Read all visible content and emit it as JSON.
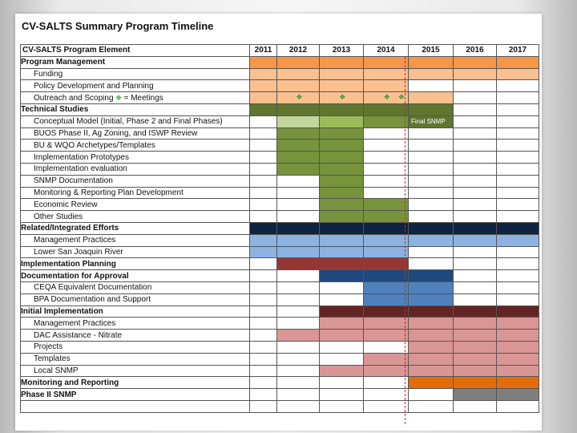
{
  "title": "CV-SALTS Summary Program Timeline",
  "header": {
    "element_label": "CV-SALTS Program Element",
    "years": [
      "2011",
      "2012",
      "2013",
      "2014",
      "2015",
      "2016",
      "2017"
    ]
  },
  "colors": {
    "orange": "#f79646",
    "peach": "#fac08f",
    "olive_dark": "#5f7530",
    "olive_mid": "#77933c",
    "light_green": "#c3d69b",
    "green": "#9bbb59",
    "navy": "#0f243e",
    "light_blue": "#8db3e2",
    "dark_red": "#953735",
    "dark_blue": "#1f497d",
    "mid_blue": "#4f81bd",
    "maroon": "#632523",
    "pink": "#d99694",
    "bright_orange": "#e46c0a",
    "gray": "#7f7f7f",
    "white": "#ffffff"
  },
  "legend_text": "= Meetings",
  "rows": [
    {
      "label": "Program Management",
      "type": "cat",
      "cells": [
        "orange",
        "orange",
        "orange",
        "orange",
        "orange",
        "orange",
        "orange"
      ]
    },
    {
      "label": "Funding",
      "type": "sub",
      "cells": [
        "peach",
        "peach",
        "peach",
        "peach",
        "peach",
        "peach",
        "peach"
      ]
    },
    {
      "label": "Policy Development and Planning",
      "type": "sub",
      "cells": [
        "peach",
        "peach",
        "peach",
        "peach",
        "white",
        "white",
        "white"
      ]
    },
    {
      "label": "Outreach and Scoping",
      "type": "sub",
      "meeting_note": true,
      "cells": [
        "peach",
        "peach",
        "peach",
        "peach",
        "peach",
        "white",
        "white"
      ],
      "marks": [
        1,
        2,
        3,
        3.5
      ]
    },
    {
      "label": "Technical Studies",
      "type": "cat",
      "cells": [
        "olive_dark",
        "olive_dark",
        "olive_dark",
        "olive_dark",
        "olive_dark",
        "white",
        "white"
      ]
    },
    {
      "label": "Conceptual Model (Initial, Phase 2 and Final Phases)",
      "type": "sub",
      "cells": [
        "white",
        "light_green",
        "green",
        "olive_mid",
        "olive_dark",
        "white",
        "white"
      ],
      "note_col": 3,
      "note": "Final SNMP"
    },
    {
      "label": "BUOS Phase II, Ag Zoning, and ISWP Review",
      "type": "sub",
      "cells": [
        "white",
        "olive_mid",
        "olive_mid",
        "white",
        "white",
        "white",
        "white"
      ]
    },
    {
      "label": "BU & WQO Archetypes/Templates",
      "type": "sub",
      "cells": [
        "white",
        "olive_mid",
        "olive_mid",
        "white",
        "white",
        "white",
        "white"
      ]
    },
    {
      "label": "Implementation Prototypes",
      "type": "sub",
      "cells": [
        "white",
        "olive_mid",
        "olive_mid",
        "white",
        "white",
        "white",
        "white"
      ]
    },
    {
      "label": "Implementation evaluation",
      "type": "sub",
      "cells": [
        "white",
        "olive_mid",
        "olive_mid",
        "white",
        "white",
        "white",
        "white"
      ]
    },
    {
      "label": "SNMP Documentation",
      "type": "sub",
      "cells": [
        "white",
        "white",
        "olive_mid",
        "white",
        "white",
        "white",
        "white"
      ]
    },
    {
      "label": "Monitoring & Reporting Plan Development",
      "type": "sub",
      "cells": [
        "white",
        "white",
        "olive_mid",
        "white",
        "white",
        "white",
        "white"
      ]
    },
    {
      "label": "Economic Review",
      "type": "sub",
      "cells": [
        "white",
        "white",
        "olive_mid",
        "olive_mid",
        "white",
        "white",
        "white"
      ]
    },
    {
      "label": "Other Studies",
      "type": "sub",
      "cells": [
        "white",
        "white",
        "olive_mid",
        "olive_mid",
        "white",
        "white",
        "white"
      ]
    },
    {
      "label": "Related/Integrated Efforts",
      "type": "cat",
      "cells": [
        "navy",
        "navy",
        "navy",
        "navy",
        "navy",
        "navy",
        "navy"
      ]
    },
    {
      "label": "Management Practices",
      "type": "sub",
      "cells": [
        "light_blue",
        "light_blue",
        "light_blue",
        "light_blue",
        "light_blue",
        "light_blue",
        "light_blue"
      ]
    },
    {
      "label": "Lower San Joaquin River",
      "type": "sub",
      "cells": [
        "light_blue",
        "light_blue",
        "light_blue",
        "light_blue",
        "white",
        "white",
        "white"
      ]
    },
    {
      "label": "Implementation Planning",
      "type": "cat",
      "cells": [
        "white",
        "dark_red",
        "dark_red",
        "dark_red",
        "white",
        "white",
        "white"
      ]
    },
    {
      "label": "Documentation for Approval",
      "type": "cat",
      "cells": [
        "white",
        "white",
        "dark_blue",
        "dark_blue",
        "dark_blue",
        "white",
        "white"
      ]
    },
    {
      "label": "CEQA Equivalent Documentation",
      "type": "sub",
      "cells": [
        "white",
        "white",
        "white",
        "mid_blue",
        "mid_blue",
        "white",
        "white"
      ]
    },
    {
      "label": "BPA Documentation and Support",
      "type": "sub",
      "cells": [
        "white",
        "white",
        "white",
        "mid_blue",
        "mid_blue",
        "white",
        "white"
      ]
    },
    {
      "label": "Initial Implementation",
      "type": "cat",
      "cells": [
        "white",
        "white",
        "maroon",
        "maroon",
        "maroon",
        "maroon",
        "maroon"
      ]
    },
    {
      "label": "Management Practices",
      "type": "sub",
      "cells": [
        "white",
        "white",
        "pink",
        "pink",
        "pink",
        "pink",
        "pink"
      ]
    },
    {
      "label": "DAC Assistance - Nitrate",
      "type": "sub",
      "cells": [
        "white",
        "pink",
        "pink",
        "pink",
        "pink",
        "pink",
        "pink"
      ]
    },
    {
      "label": "Projects",
      "type": "sub",
      "cells": [
        "white",
        "white",
        "white",
        "white",
        "pink",
        "pink",
        "pink"
      ]
    },
    {
      "label": "Templates",
      "type": "sub",
      "cells": [
        "white",
        "white",
        "white",
        "pink",
        "pink",
        "pink",
        "pink"
      ]
    },
    {
      "label": "Local SNMP",
      "type": "sub",
      "cells": [
        "white",
        "white",
        "pink",
        "pink",
        "pink",
        "pink",
        "pink"
      ]
    },
    {
      "label": "Monitoring and Reporting",
      "type": "cat",
      "cells": [
        "white",
        "white",
        "white",
        "white",
        "bright_orange",
        "bright_orange",
        "bright_orange"
      ]
    },
    {
      "label": "Phase II SNMP",
      "type": "cat",
      "cells": [
        "white",
        "white",
        "white",
        "white",
        "white",
        "gray",
        "gray"
      ]
    },
    {
      "label": "",
      "type": "sub",
      "cells": [
        "white",
        "white",
        "white",
        "white",
        "white",
        "white",
        "white"
      ]
    }
  ]
}
